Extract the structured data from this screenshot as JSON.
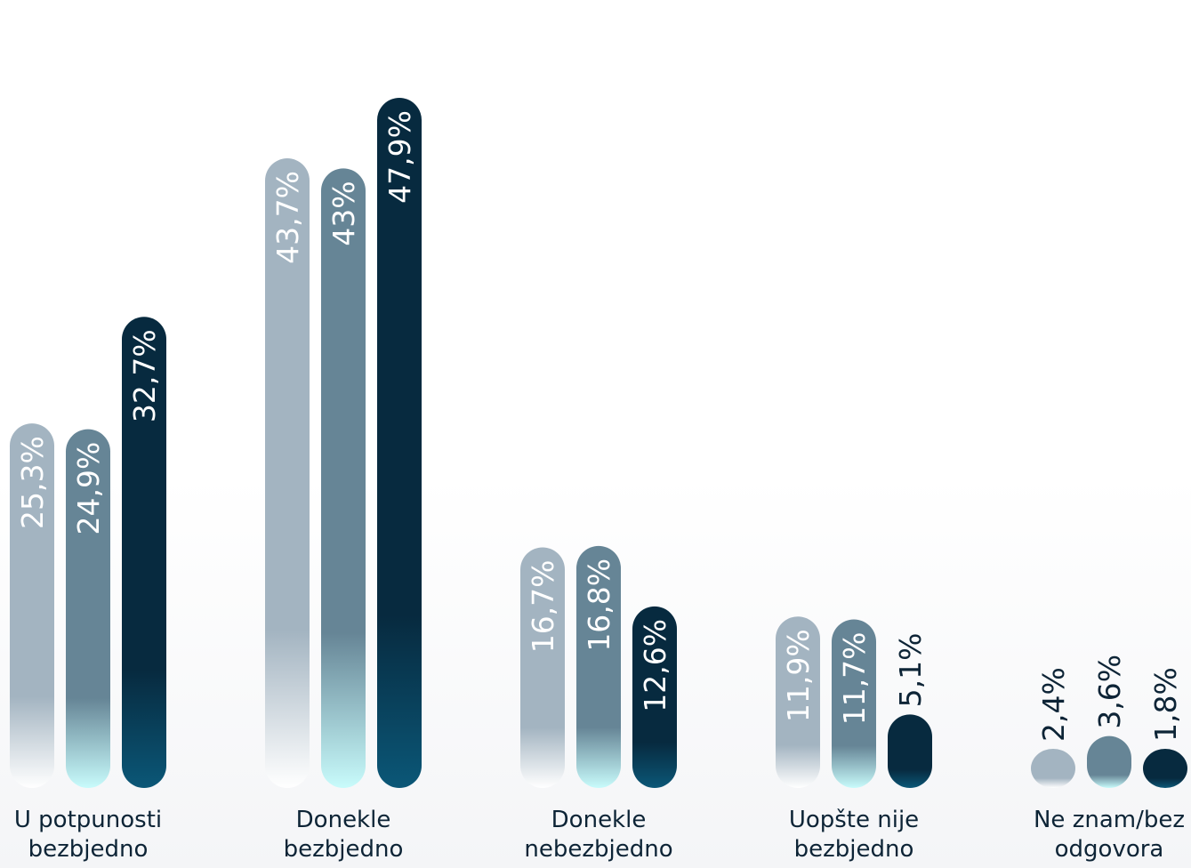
{
  "chart_data": {
    "type": "bar",
    "categories": [
      [
        "U potpunosti",
        "bezbjedno"
      ],
      [
        "Donekle",
        "bezbjedno"
      ],
      [
        "Donekle",
        "nebezbjedno"
      ],
      [
        "Uopšte nije",
        "bezbjedno"
      ],
      [
        "Ne znam/bez",
        "odgovora"
      ]
    ],
    "series": [
      {
        "values": [
          25.3,
          43.7,
          16.7,
          11.9,
          2.4
        ],
        "labels": [
          "25,3%",
          "43,7%",
          "16,7%",
          "11,9%",
          "2,4%"
        ],
        "color": "#a3b4c1",
        "fade_color": "#ffffff",
        "label_color": "#ffffff"
      },
      {
        "values": [
          24.9,
          43.0,
          16.8,
          11.7,
          3.6
        ],
        "labels": [
          "24,9%",
          "43%",
          "16,8%",
          "11,7%",
          "3,6%"
        ],
        "color": "#668596",
        "fade_color": "#c8fbfb",
        "label_color": "#ffffff"
      },
      {
        "values": [
          32.7,
          47.9,
          12.6,
          5.1,
          1.8
        ],
        "labels": [
          "32,7%",
          "47,9%",
          "12,6%",
          "5,1%",
          "1,8%"
        ],
        "color": "#072a3f",
        "fade_color": "#0b5777",
        "label_color": "#ffffff"
      }
    ],
    "ylim": [
      0,
      50
    ],
    "grid": false,
    "legend": "none"
  }
}
